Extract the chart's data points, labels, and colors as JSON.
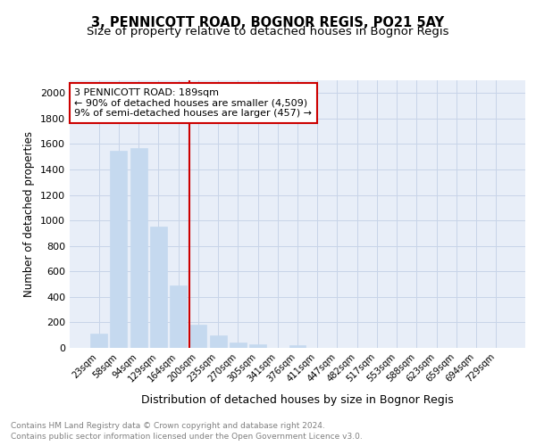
{
  "title": "3, PENNICOTT ROAD, BOGNOR REGIS, PO21 5AY",
  "subtitle": "Size of property relative to detached houses in Bognor Regis",
  "xlabel": "Distribution of detached houses by size in Bognor Regis",
  "ylabel": "Number of detached properties",
  "categories": [
    "23sqm",
    "58sqm",
    "94sqm",
    "129sqm",
    "164sqm",
    "200sqm",
    "235sqm",
    "270sqm",
    "305sqm",
    "341sqm",
    "376sqm",
    "411sqm",
    "447sqm",
    "482sqm",
    "517sqm",
    "553sqm",
    "588sqm",
    "623sqm",
    "659sqm",
    "694sqm",
    "729sqm"
  ],
  "values": [
    110,
    1545,
    1565,
    950,
    490,
    185,
    100,
    40,
    30,
    0,
    20,
    0,
    0,
    0,
    0,
    0,
    0,
    0,
    0,
    0,
    0
  ],
  "bar_color": "#c5d9ef",
  "bar_edgecolor": "#c5d9ef",
  "property_line_color": "#cc0000",
  "annotation_text": "3 PENNICOTT ROAD: 189sqm\n← 90% of detached houses are smaller (4,509)\n9% of semi-detached houses are larger (457) →",
  "annotation_box_edgecolor": "#cc0000",
  "ylim": [
    0,
    2100
  ],
  "yticks": [
    0,
    200,
    400,
    600,
    800,
    1000,
    1200,
    1400,
    1600,
    1800,
    2000
  ],
  "grid_color": "#c8d4e8",
  "bg_color": "#e8eef8",
  "footer_line1": "Contains HM Land Registry data © Crown copyright and database right 2024.",
  "footer_line2": "Contains public sector information licensed under the Open Government Licence v3.0.",
  "title_fontsize": 10.5,
  "subtitle_fontsize": 9.5,
  "xlabel_fontsize": 9,
  "ylabel_fontsize": 8.5,
  "footer_fontsize": 6.5
}
